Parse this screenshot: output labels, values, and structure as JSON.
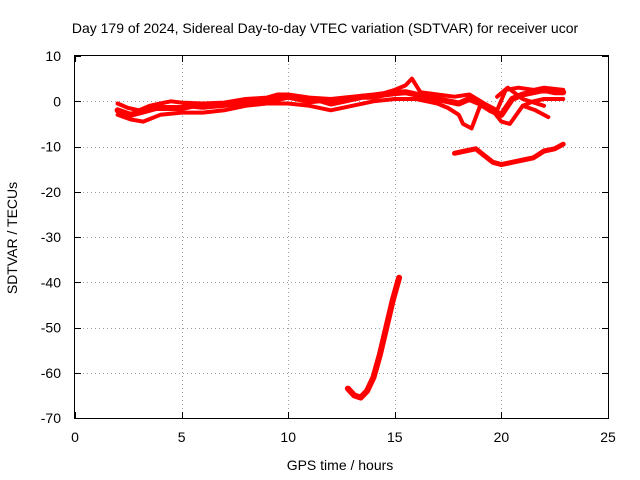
{
  "chart_data": {
    "type": "line",
    "title": "Day 179 of 2024, Sidereal Day-to-day VTEC variation (SDTVAR) for receiver ucor",
    "xlabel": "GPS time / hours",
    "ylabel": "SDTVAR / TECUs",
    "xlim": [
      0,
      25
    ],
    "ylim": [
      -70,
      10
    ],
    "xticks": [
      0,
      5,
      10,
      15,
      20,
      25
    ],
    "yticks": [
      -70,
      -60,
      -50,
      -40,
      -30,
      -20,
      -10,
      0,
      10
    ],
    "grid": true,
    "series_color": "#ff0000",
    "series": [
      {
        "name": "main-band",
        "x": [
          2.0,
          2.3,
          2.6,
          3.0,
          3.4,
          3.8,
          4.2,
          4.6,
          5.0,
          5.5,
          6.0,
          6.5,
          7.0,
          7.5,
          8.0,
          8.5,
          9.0,
          9.5,
          10.0,
          10.5,
          11.0,
          11.5,
          12.0,
          12.5,
          13.0,
          13.5,
          14.0,
          14.5,
          15.0,
          15.5,
          16.0,
          16.5,
          17.0,
          17.5,
          18.0,
          18.5,
          19.0,
          19.5,
          20.0,
          20.5,
          21.0,
          21.5,
          22.0,
          22.5,
          22.9
        ],
        "y": [
          -2.0,
          -2.5,
          -3.0,
          -2.5,
          -2.0,
          -1.5,
          -1.5,
          -1.5,
          -1.5,
          -1.0,
          -1.2,
          -1.0,
          -0.8,
          -0.5,
          0.0,
          0.2,
          0.3,
          0.5,
          1.0,
          0.5,
          0.0,
          0.2,
          -0.5,
          0.0,
          0.5,
          1.0,
          1.0,
          1.5,
          1.8,
          2.0,
          1.5,
          1.0,
          0.5,
          0.0,
          -0.5,
          0.5,
          -0.5,
          -2.0,
          -3.0,
          0.5,
          1.5,
          2.0,
          2.5,
          2.0,
          2.0
        ],
        "width": 6
      },
      {
        "name": "upper-variation",
        "x": [
          2.0,
          2.5,
          3.0,
          3.5,
          4.0,
          4.5,
          5.0,
          6.0,
          7.0,
          8.0,
          9.0,
          9.5,
          10.0,
          11.0,
          12.0,
          13.0,
          14.0,
          14.5,
          15.0,
          15.5,
          15.8,
          16.2,
          17.0,
          17.8,
          18.5,
          19.2,
          19.8,
          20.2,
          20.8,
          21.5,
          22.0,
          22.9
        ],
        "y": [
          -0.5,
          -1.5,
          -2.0,
          -1.0,
          -0.5,
          0.0,
          -0.3,
          -0.5,
          -0.3,
          0.5,
          0.8,
          1.5,
          1.5,
          0.8,
          0.5,
          1.0,
          1.5,
          1.8,
          2.5,
          3.5,
          5.0,
          2.0,
          1.5,
          1.0,
          1.5,
          -0.5,
          -2.0,
          2.5,
          3.0,
          2.5,
          3.0,
          2.5
        ],
        "width": 4
      },
      {
        "name": "lower-variation",
        "x": [
          2.0,
          2.6,
          3.2,
          4.0,
          5.0,
          6.0,
          7.0,
          8.0,
          9.0,
          10.0,
          11.0,
          12.0,
          13.0,
          14.0,
          15.0,
          16.0,
          17.0,
          17.5,
          18.0,
          18.2,
          18.6,
          19.0,
          19.5,
          20.0,
          20.4,
          21.0,
          21.5,
          22.0,
          22.9
        ],
        "y": [
          -3.0,
          -4.0,
          -4.5,
          -3.0,
          -2.5,
          -2.5,
          -2.0,
          -1.0,
          -0.5,
          -0.5,
          -1.0,
          -2.0,
          -1.0,
          0.0,
          0.5,
          0.5,
          -0.5,
          -1.5,
          -3.0,
          -5.0,
          -6.0,
          -1.0,
          -1.5,
          -4.5,
          -5.0,
          -1.0,
          0.0,
          0.5,
          0.5
        ],
        "width": 4
      },
      {
        "name": "spur-a",
        "x": [
          19.8,
          20.3,
          21.0,
          22.0
        ],
        "y": [
          1.0,
          3.0,
          0.5,
          -1.0
        ],
        "width": 4
      },
      {
        "name": "spur-b",
        "x": [
          21.0,
          21.6,
          22.2
        ],
        "y": [
          -1.0,
          -2.0,
          -3.5
        ],
        "width": 4
      },
      {
        "name": "mid-branch",
        "x": [
          17.8,
          18.3,
          18.8,
          19.2,
          19.6,
          20.0,
          20.5,
          21.0,
          21.5,
          22.0,
          22.5,
          22.9
        ],
        "y": [
          -11.5,
          -11.0,
          -10.5,
          -12.0,
          -13.5,
          -14.0,
          -13.5,
          -13.0,
          -12.5,
          -11.0,
          -10.5,
          -9.5
        ],
        "width": 5
      },
      {
        "name": "deep-branch",
        "x": [
          12.8,
          13.1,
          13.4,
          13.7,
          14.0,
          14.3,
          14.6,
          14.9,
          15.2
        ],
        "y": [
          -63.5,
          -65.0,
          -65.5,
          -64.0,
          -61.0,
          -56.0,
          -50.0,
          -44.0,
          -39.0
        ],
        "width": 6
      }
    ]
  }
}
